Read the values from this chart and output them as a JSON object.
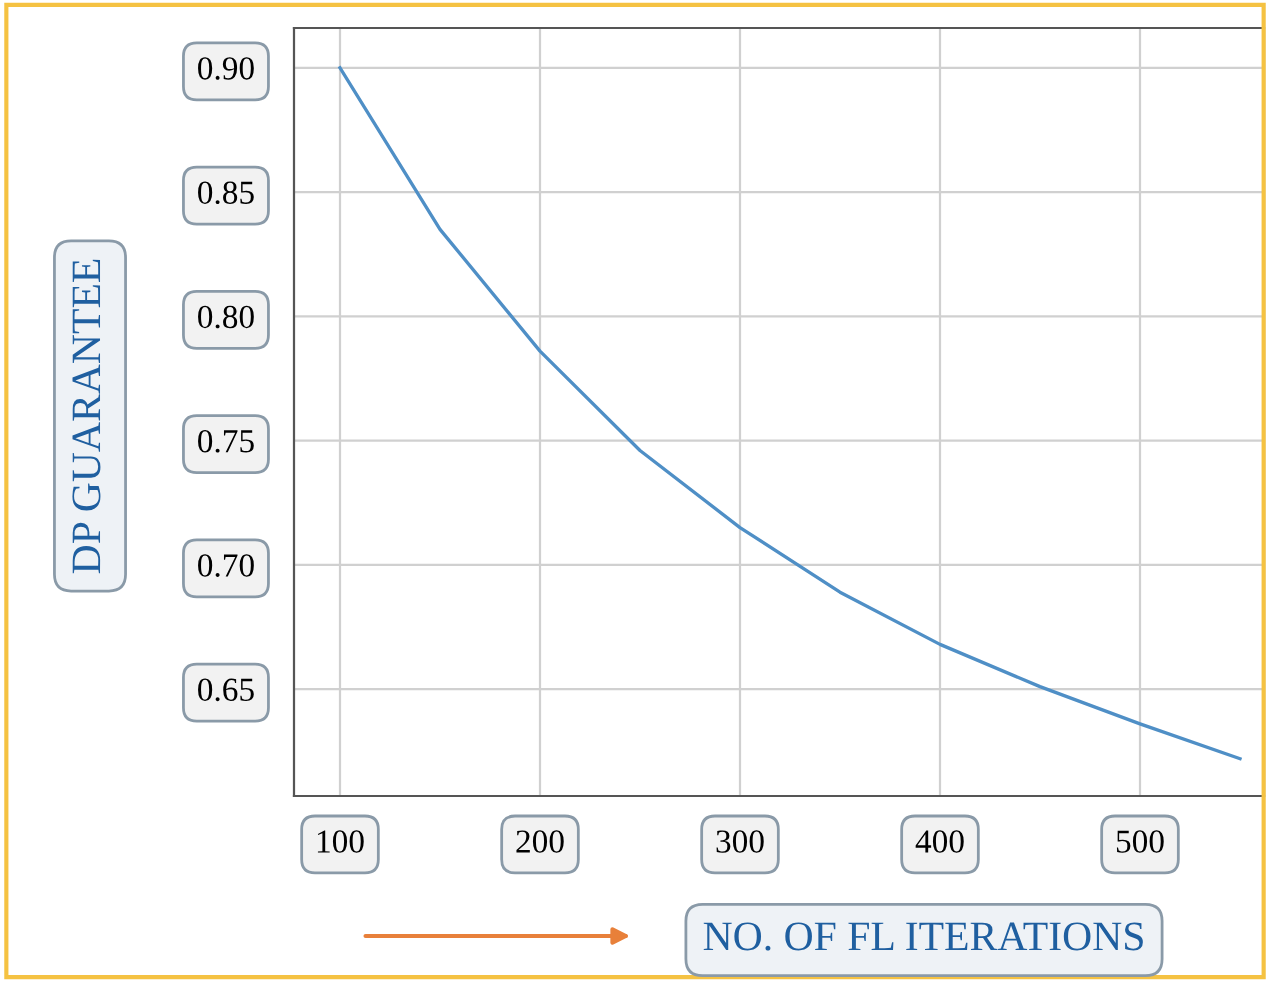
{
  "chart_data": {
    "type": "line",
    "xlabel": "NO. OF FL ITERATIONS",
    "ylabel": "DP GUARANTEE",
    "x": [
      100,
      150,
      200,
      250,
      300,
      350,
      400,
      450,
      500,
      550
    ],
    "series": [
      {
        "color": "#4f8fc6",
        "values": [
          0.9,
          0.835,
          0.786,
          0.746,
          0.715,
          0.689,
          0.668,
          0.651,
          0.636,
          0.622
        ]
      }
    ],
    "xlim": [
      77,
      562
    ],
    "ylim": [
      0.607,
      0.916
    ],
    "xticks": [
      100,
      200,
      300,
      400,
      500
    ],
    "yticks": [
      {
        "value": 0.65,
        "label": "0.65"
      },
      {
        "value": 0.7,
        "label": "0.70"
      },
      {
        "value": 0.75,
        "label": "0.75"
      },
      {
        "value": 0.8,
        "label": "0.80"
      },
      {
        "value": 0.85,
        "label": "0.85"
      },
      {
        "value": 0.9,
        "label": "0.90"
      }
    ],
    "grid": true
  }
}
